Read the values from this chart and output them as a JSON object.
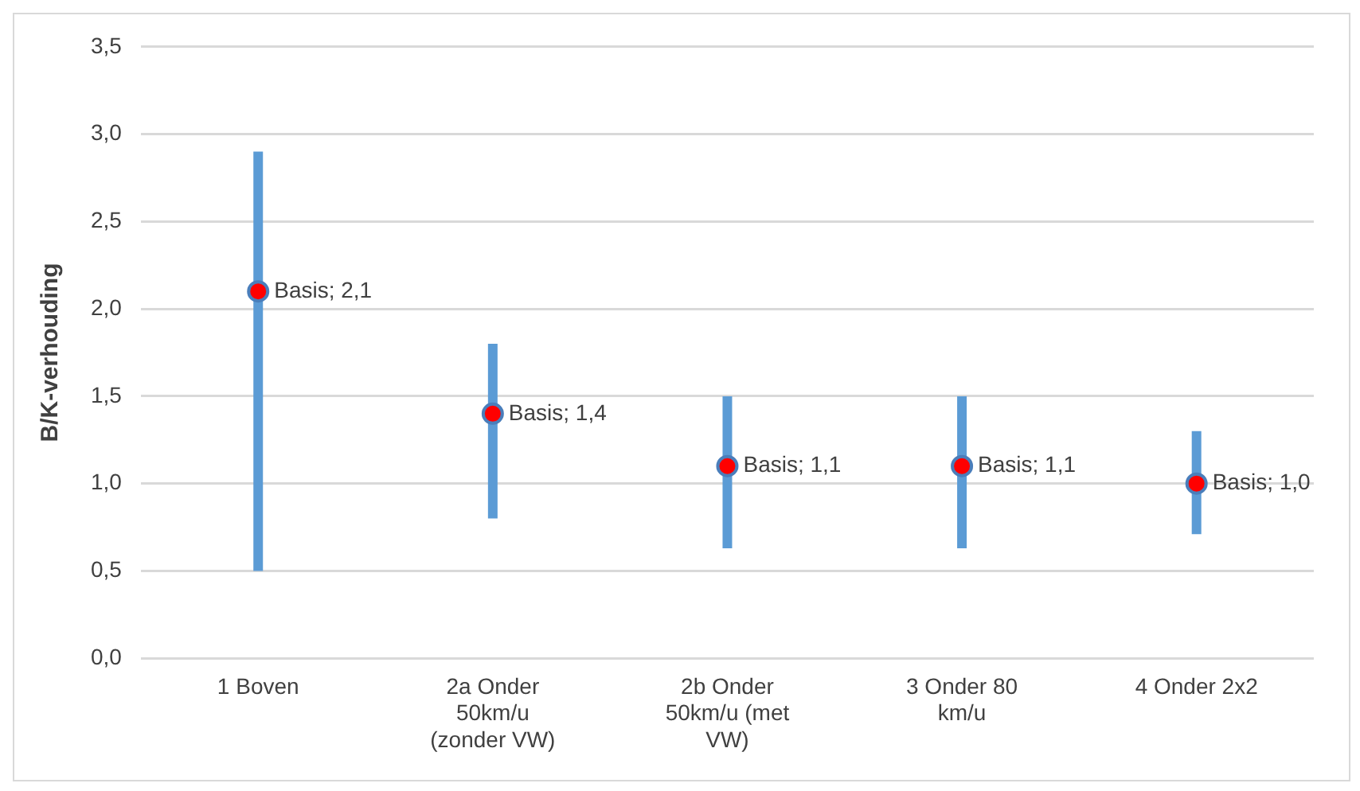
{
  "chart_data": {
    "type": "scatter",
    "ylabel": "B/K-verhouding",
    "categories": [
      "1 Boven",
      "2a Onder 50km/u (zonder VW)",
      "2b Onder 50km/u (met VW)",
      "3 Onder 80 km/u",
      "4 Onder 2x2"
    ],
    "series": [
      {
        "color": "#ff0000",
        "values": [
          2.1,
          1.4,
          1.1,
          1.1,
          1.0
        ],
        "errors": [
          [
            0.5,
            2.9
          ],
          [
            0.8,
            1.8
          ],
          [
            0.63,
            1.5
          ],
          [
            0.63,
            1.5
          ],
          [
            0.71,
            1.3
          ]
        ],
        "value_labels": [
          "Basis; 2,1",
          "Basis; 1,4",
          "Basis; 1,1",
          "Basis; 1,1",
          "Basis; 1,0"
        ]
      }
    ],
    "ylim": [
      0,
      3.5
    ],
    "yticks": [
      {
        "value": 0,
        "label": "0,0"
      },
      {
        "value": 0.5,
        "label": "0,5"
      },
      {
        "value": 1,
        "label": "1,0"
      },
      {
        "value": 1.5,
        "label": "1,5"
      },
      {
        "value": 2,
        "label": "2,0"
      },
      {
        "value": 2.5,
        "label": "2,5"
      },
      {
        "value": 3,
        "label": "3,0"
      },
      {
        "value": 3.5,
        "label": "3,5"
      }
    ],
    "grid": "y",
    "legend": false,
    "marker": "circle"
  }
}
